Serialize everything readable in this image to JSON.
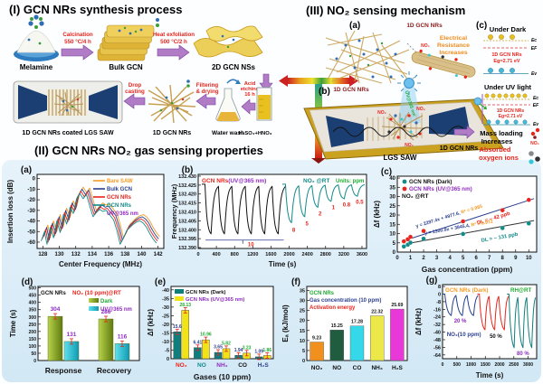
{
  "panel_i": {
    "title": "(I) GCN NRs synthesis process",
    "melamine": "Melamine",
    "calcination_1": "Calcination",
    "calcination_2": "550 °C/4 h",
    "bulk_gcn": "Bulk GCN",
    "exfoliation_1": "Heat exfoliation",
    "exfoliation_2": "500 °C/2 h",
    "nss": "2D GCN NSs",
    "saw_label": "1D GCN NRs coated LGS SAW",
    "drop_1": "Drop",
    "drop_2": "casting",
    "nrs": "1D GCN NRs",
    "filter_1": "Filtering",
    "filter_2": "& drying",
    "water_wash": "Water wash",
    "acid_1": "Acid",
    "acid_2": "etching",
    "acid_3": "16 h",
    "acid_mix": "H₂SO₄+HNO₃"
  },
  "panel_iii": {
    "title": "(III) NO₂ sensing mechanism",
    "a": "(a)",
    "b": "(b)",
    "c": "(c)",
    "nrs_top": "1D GCN NRs",
    "nrs_net": "1D GCN NRs",
    "res_1": "Electrical",
    "res_2": "Resistance",
    "res_3": "Increases",
    "under_dark": "Under Dark",
    "under_uv": "Under UV light",
    "gcn_1": "1D GCN NRs",
    "eg_1": "Eg=2.71 eV",
    "gcn_2": "1D GCN NRs",
    "eg_2": "Eg=2.71 eV",
    "ec": "Ec",
    "ef": "EF",
    "ev": "Ev",
    "ec2": "Ec",
    "ef2": "EF",
    "ev2": "Ev",
    "uv_beam": "UV@365 nm",
    "nrs_dev": "1D GCN NRs",
    "lgs": "LGS SAW",
    "mass_1": "Mass loading",
    "mass_2": "Increases",
    "mass_3": "Absorbed",
    "mass_4": "oxygen ions",
    "no2": "NO₂"
  },
  "panel_ii": {
    "title": "(II) GCN NRs NO₂ gas sensing properties"
  },
  "chart_data": [
    {
      "panel": "a",
      "type": "line",
      "label": "(a)",
      "xlabel": "Center Frequency (MHz)",
      "ylabel": "Insertion loss (dB)",
      "xlim": [
        127.3,
        142.7
      ],
      "ylim": [
        -66,
        4
      ],
      "xticks": [
        128,
        130,
        132,
        134,
        136,
        138,
        140,
        142
      ],
      "yticks": [
        0,
        -10,
        -20,
        -30,
        -40,
        -50,
        -60
      ],
      "series": [
        {
          "name": "Bare SAW",
          "color": "#f59a23",
          "dx": 0.2,
          "dy": 0
        },
        {
          "name": "Bulk GCN",
          "color": "#2c3f8f",
          "dx": 0.07,
          "dy": -2
        },
        {
          "name": "GCN NRs",
          "color": "#e8241c",
          "dx": -0.07,
          "dy": -4
        },
        {
          "name": "GCN NRs",
          "color": "#108b8a",
          "dx": -0.2,
          "dy": -6,
          "sub": "UV@365 nm",
          "sub_color": "#8e2bbf"
        }
      ],
      "profile": [
        [
          128,
          -53
        ],
        [
          128.4,
          -44
        ],
        [
          128.7,
          -56
        ],
        [
          129.1,
          -40
        ],
        [
          129.5,
          -50
        ],
        [
          129.9,
          -34
        ],
        [
          130.3,
          -45
        ],
        [
          130.7,
          -28
        ],
        [
          131.1,
          -37
        ],
        [
          131.5,
          -21
        ],
        [
          131.9,
          -27
        ],
        [
          132.3,
          -13
        ],
        [
          132.7,
          -8
        ],
        [
          133.1,
          -13
        ],
        [
          133.5,
          -9
        ],
        [
          133.9,
          -20
        ],
        [
          134.3,
          -30
        ],
        [
          134.7,
          -26
        ],
        [
          135.1,
          -23
        ],
        [
          135.5,
          -25
        ],
        [
          135.9,
          -24
        ],
        [
          136.3,
          -28
        ],
        [
          136.8,
          -33
        ],
        [
          137.2,
          -43
        ],
        [
          137.6,
          -56
        ],
        [
          138,
          -50
        ],
        [
          138.4,
          -43
        ],
        [
          138.8,
          -40
        ],
        [
          139.2,
          -37
        ],
        [
          139.6,
          -35
        ],
        [
          140,
          -34
        ],
        [
          140.4,
          -36
        ],
        [
          140.8,
          -40
        ],
        [
          141.2,
          -46
        ],
        [
          141.6,
          -51
        ],
        [
          142,
          -55
        ]
      ]
    },
    {
      "panel": "b",
      "type": "cycles",
      "label": "(b)",
      "xlabel": "Time (s)",
      "ylabel": "Frequency (MHz)",
      "xlim": [
        0,
        3700
      ],
      "ylim": [
        132.3895,
        132.431
      ],
      "xticks": [
        0,
        400,
        800,
        1200,
        1600,
        2000,
        2400,
        2800,
        3200,
        3600
      ],
      "yticks": [
        132.39,
        132.395,
        132.4,
        132.405,
        132.41,
        132.415,
        132.42,
        132.425,
        132.43
      ],
      "ylab": [
        "132.390",
        "132.395",
        "132.400",
        "132.405",
        "132.410",
        "132.415",
        "132.420",
        "132.425",
        "132.430"
      ],
      "header": [
        {
          "t": "GCN NRs",
          "c": "#e8241c"
        },
        {
          "t": "(UV@365 nm)",
          "c": "#8e2bbf"
        }
      ],
      "right": [
        {
          "t": "NO₂ @RT",
          "c": "#108b8a"
        },
        {
          "t": "Units: ppm",
          "c": "#1faa30"
        }
      ],
      "base": 132.4255,
      "black": {
        "color": "#111111",
        "t0": 150,
        "period": 295,
        "troughs": [
          132.3965,
          132.3965,
          132.3965,
          132.3965,
          132.3965,
          132.3965
        ],
        "label": "10",
        "bracket": {
          "y": 132.3942,
          "x0": 160,
          "x1": 1880,
          "tick": 980
        }
      },
      "teal": {
        "color": "#108b8a",
        "t0": 1920,
        "period": 290,
        "cycles": [
          {
            "c": "8",
            "v": 132.403
          },
          {
            "c": "5",
            "v": 132.4065
          },
          {
            "c": "2",
            "v": 132.412
          },
          {
            "c": "1",
            "v": 132.4155
          },
          {
            "c": "0.8",
            "v": 132.417
          },
          {
            "c": "0.5",
            "v": 132.4185
          }
        ]
      }
    },
    {
      "panel": "c",
      "type": "scatter",
      "label": "(c)",
      "xlabel": "Gas concentration (ppm)",
      "ylabel": "Δf (kHz)",
      "xlim": [
        0,
        10.6
      ],
      "ylim": [
        0,
        41
      ],
      "xticks": [
        0,
        1,
        2,
        3,
        4,
        5,
        6,
        7,
        8,
        9,
        10
      ],
      "yticks": [
        0,
        5,
        10,
        15,
        20,
        25,
        30,
        35,
        40
      ],
      "legend": [
        {
          "name": "GCN NRs (Dark)",
          "color": "#108b8a",
          "tc": "#111111"
        },
        {
          "name": "GCN NRs (UV@365 nm)",
          "color": "#e8241c",
          "tc": "#8e2bbf"
        }
      ],
      "note": "NO₂ @RT",
      "series": [
        {
          "color": "#108b8a",
          "pts": [
            [
              0.5,
              3
            ],
            [
              0.8,
              4
            ],
            [
              1,
              5.1
            ],
            [
              2,
              7.2
            ],
            [
              5,
              9.8
            ],
            [
              8,
              13
            ],
            [
              10,
              15.5
            ]
          ],
          "fit": {
            "x0": 1.1,
            "y0": 5.0,
            "x1": 10.4,
            "y1": 17.0,
            "color": "#333333"
          }
        },
        {
          "color": "#e8241c",
          "pts": [
            [
              0.5,
              5.8
            ],
            [
              0.8,
              6.9
            ],
            [
              1,
              8.2
            ],
            [
              2,
              11.4
            ],
            [
              5,
              16.6
            ],
            [
              8,
              22.6
            ],
            [
              10,
              28.2
            ]
          ],
          "fit": {
            "x0": 1.1,
            "y0": 7.5,
            "x1": 10.4,
            "y1": 28.9,
            "color": "#2c3f8f"
          }
        }
      ],
      "ann": [
        {
          "eq": "y = 2297.4x + 4977.6, ",
          "r2": "R² = 0.985",
          "x": 1.45,
          "y": 13.2,
          "rot": -17,
          "ec": "#2c3f8f",
          "rc": "#f59a23"
        },
        {
          "dl": "DL = ~ 42 ppb",
          "x": 6.1,
          "y": 14.8,
          "rot": -17,
          "c": "#e8241c"
        },
        {
          "eq": "y = 1300.9x + 3845.4, ",
          "r2": "R² = 0.972",
          "x": 2.1,
          "y": 9.4,
          "rot": -10,
          "ec": "#2c3f8f",
          "rc": "#f59a23"
        },
        {
          "dl": "DL = ~ 131 ppb",
          "x": 6.4,
          "y": 5.4,
          "rot": -10,
          "c": "#108b8a"
        }
      ]
    },
    {
      "panel": "d",
      "type": "bars2",
      "label": "(d)",
      "ylabel": "Time (s)",
      "ylim": [
        0,
        510
      ],
      "yticks": [
        0,
        50,
        100,
        150,
        200,
        250,
        300,
        350,
        400,
        450,
        500
      ],
      "categories": [
        "Response",
        "Recovery"
      ],
      "header1": "GCN NRs",
      "header2": "NO₂ (10 ppm)@RT",
      "legend": [
        {
          "name": "Dark",
          "color": "#93b321",
          "tc": "#1faa30"
        },
        {
          "name": "UV@365 nm",
          "color": "#19c0d8",
          "tc": "#8e2bbf"
        }
      ],
      "series": [
        {
          "name": "Dark",
          "color": "#93b321",
          "values": [
            304,
            286
          ]
        },
        {
          "name": "UV@365 nm",
          "color": "#19c0d8",
          "values": [
            131,
            116
          ]
        }
      ],
      "vcolor": "#8e2bbf"
    },
    {
      "panel": "e",
      "type": "bars2",
      "label": "(e)",
      "ylabel": "Δf (kHz)",
      "xlabel": "Gases (10 ppm)",
      "ylim": [
        0,
        42
      ],
      "yticks": [
        0,
        5,
        10,
        15,
        20,
        25,
        30,
        35,
        40
      ],
      "ylab": [
        "0",
        "-5",
        "-10",
        "-15",
        "-20",
        "-25",
        "-30",
        "-35",
        "-40"
      ],
      "categories": [
        "NO₂",
        "NO",
        "NH₃",
        "CO",
        "H₂S"
      ],
      "cat_colors": [
        "#e8241c",
        "#108b8a",
        "#8e2bbf",
        "#111111",
        "#2c3f8f"
      ],
      "legend": [
        {
          "name": "GCN NRs (Dark)",
          "color": "#0f7f7d",
          "tc": "#111111"
        },
        {
          "name": "GCN NRs (UV@365 nm)",
          "color": "#f2e318",
          "tc": "#8e2bbf"
        }
      ],
      "series": [
        {
          "name": "GCN NRs (Dark)",
          "color": "#0f7f7d",
          "vc": "#2c3f8f",
          "values": [
            15.6,
            6.41,
            3.65,
            1.94,
            1.09
          ]
        },
        {
          "name": "GCN NRs (UV@365 nm)",
          "color": "#f2e318",
          "vc": "#1faa30",
          "values": [
            28.13,
            10.96,
            5.82,
            3.23,
            1.86
          ]
        }
      ]
    },
    {
      "panel": "f",
      "type": "bars1",
      "label": "(f)",
      "ylabel": "Eₐ (kJ/mol)",
      "ylim": [
        0,
        37
      ],
      "yticks": [
        0,
        5,
        10,
        15,
        20,
        25,
        30,
        35
      ],
      "categories": [
        "NO₂",
        "NO",
        "CO",
        "NH₃",
        "H₂S"
      ],
      "values": [
        9.23,
        15.25,
        17.28,
        22.32,
        25.69
      ],
      "colors": [
        "#f2901d",
        "#1f5c40",
        "#35d8e8",
        "#ede84a",
        "#e838d8"
      ],
      "headers": [
        {
          "t": "GCN NRs",
          "c": "#1faa30"
        },
        {
          "t": "Gas concentration (10 ppm)",
          "c": "#2c3f8f"
        },
        {
          "t": "Activation energy",
          "c": "#e8241c"
        }
      ]
    },
    {
      "panel": "g",
      "type": "cycles2",
      "label": "(g)",
      "xlabel": "Time (s)",
      "ylabel": "Δf (kHz)",
      "xlim": [
        0,
        3300
      ],
      "ylim": [
        -68,
        10
      ],
      "xticks": [
        0,
        500,
        1000,
        1500,
        2000,
        2500,
        3000
      ],
      "yticks": [
        8,
        0,
        -8,
        -16,
        -24,
        -32,
        -40,
        -48,
        -56,
        -64
      ],
      "header": [
        {
          "t": "GCN NRs (Dark)",
          "c": "#f59a23"
        },
        {
          "t": "RH@RT",
          "c": "#1faa30"
        }
      ],
      "note": {
        "t": "NO₂(10 ppm)",
        "c": "#2c3f8f",
        "x": 150,
        "y": -44
      },
      "base": 0,
      "groups": [
        {
          "color": "#24408e",
          "t0": 80,
          "period": 390,
          "depth": -24,
          "n": 3,
          "label": "20 %",
          "lc": "#8e2bbf",
          "lx": 620,
          "ly": -30
        },
        {
          "color": "#e8241c",
          "t0": 1290,
          "period": 340,
          "depth": -40,
          "n": 3,
          "label": "50 %",
          "lc": "#111111",
          "lx": 1870,
          "ly": -46
        },
        {
          "color": "#0f7f7d",
          "t0": 2330,
          "period": 310,
          "depth": -60,
          "n": 3,
          "label": "80 %",
          "lc": "#8e2bbf",
          "lx": 2820,
          "ly": -64
        }
      ]
    }
  ]
}
